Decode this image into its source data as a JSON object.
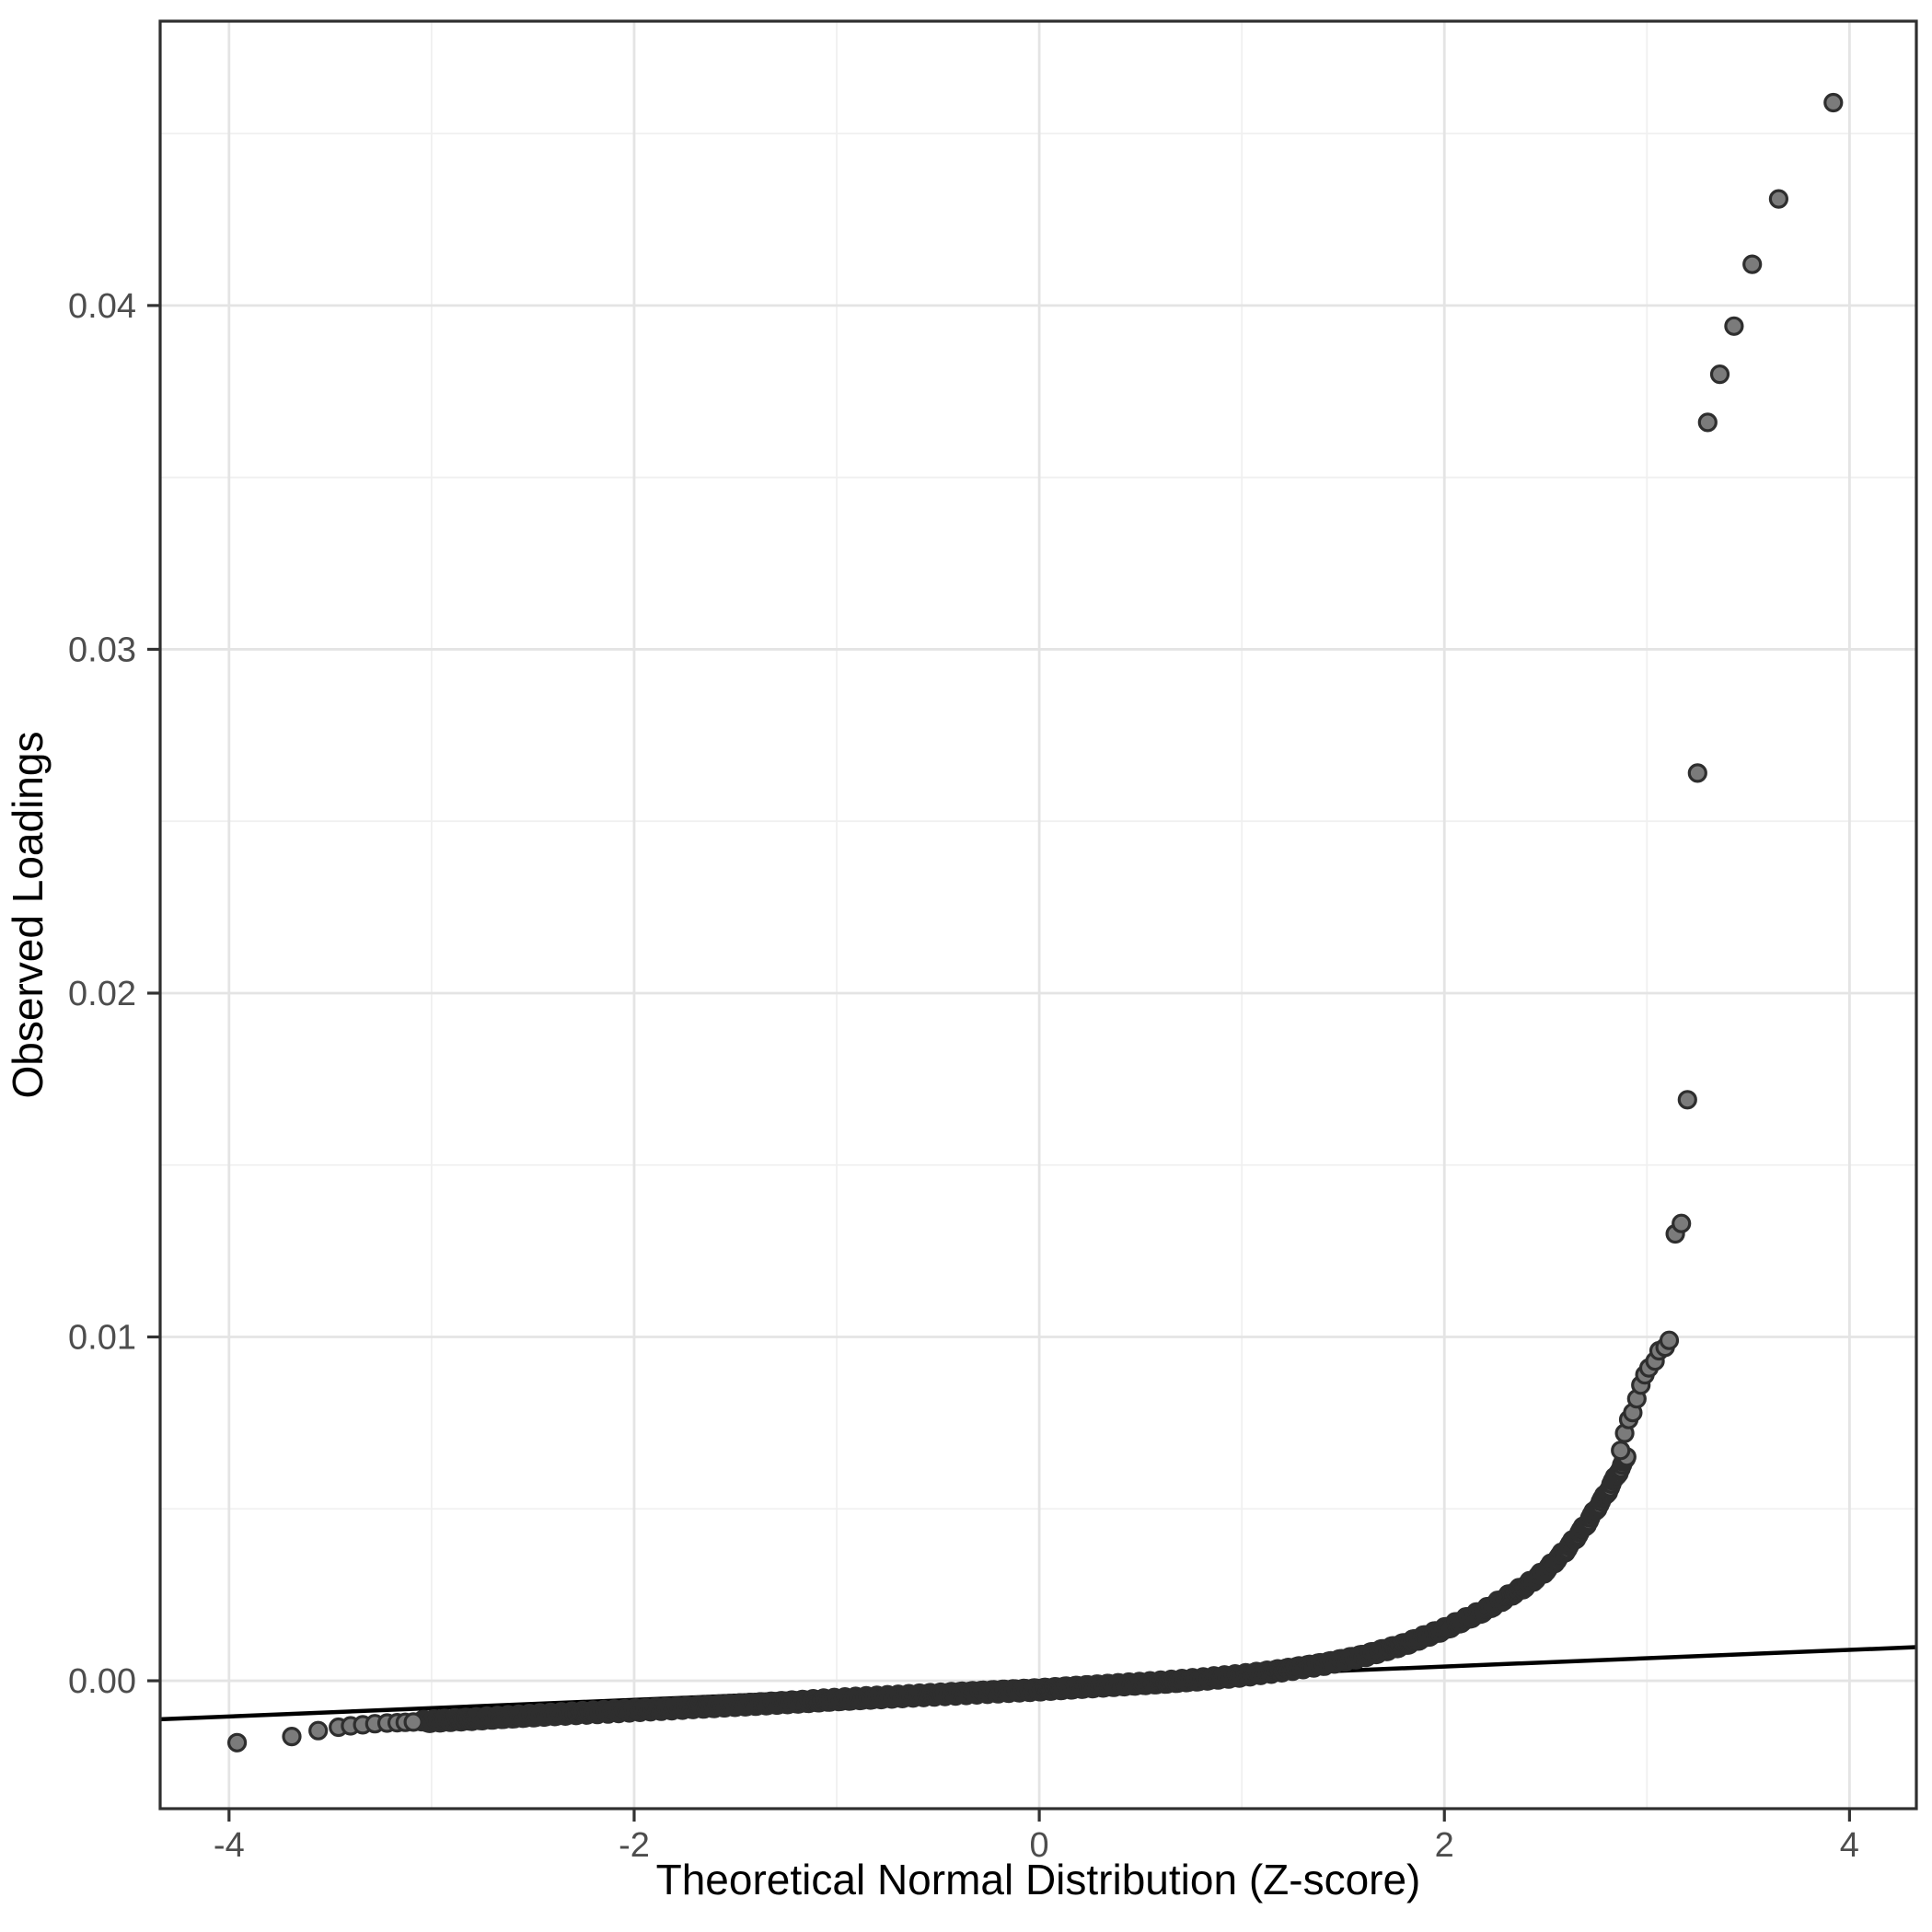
{
  "chart_data": {
    "type": "scatter",
    "title": "",
    "xlabel": "Theoretical Normal Distribution (Z-score)",
    "ylabel": "Observed Loadings",
    "xlim": [
      -4.34,
      4.33
    ],
    "ylim": [
      -0.00372,
      0.04827
    ],
    "grid": true,
    "legend": false,
    "x_ticks": [
      -4,
      -2,
      0,
      2,
      4
    ],
    "x_tick_labels": [
      "-4",
      "-2",
      "0",
      "2",
      "4"
    ],
    "x_minor_ticks": [
      -3,
      -1,
      1,
      3
    ],
    "y_ticks": [
      0.0,
      0.01,
      0.02,
      0.03,
      0.04
    ],
    "y_tick_labels": [
      "0.00",
      "0.01",
      "0.02",
      "0.03",
      "0.04"
    ],
    "y_minor_ticks": [
      0.005,
      0.015,
      0.025,
      0.035,
      0.045
    ],
    "reference_line": {
      "intercept": -7e-05,
      "slope": 0.000242
    },
    "left_tail_points": [
      [
        -3.96,
        -0.0018
      ],
      [
        -3.69,
        -0.00162
      ],
      [
        -3.56,
        -0.00145
      ],
      [
        -3.46,
        -0.00135
      ],
      [
        -3.4,
        -0.00131
      ],
      [
        -3.34,
        -0.00128
      ],
      [
        -3.28,
        -0.00125
      ],
      [
        -3.22,
        -0.00123
      ],
      [
        -3.17,
        -0.00122
      ],
      [
        -3.13,
        -0.00121
      ],
      [
        -3.09,
        -0.0012
      ]
    ],
    "band_anchors": [
      [
        -3.05,
        -0.00119
      ],
      [
        -2.8,
        -0.00112
      ],
      [
        -2.6,
        -0.00105
      ],
      [
        -2.4,
        -0.00098
      ],
      [
        -2.2,
        -0.00092
      ],
      [
        -2.0,
        -0.00086
      ],
      [
        -1.8,
        -0.0008
      ],
      [
        -1.6,
        -0.00074
      ],
      [
        -1.4,
        -0.00068
      ],
      [
        -1.2,
        -0.00062
      ],
      [
        -1.0,
        -0.00055
      ],
      [
        -0.8,
        -0.00049
      ],
      [
        -0.6,
        -0.00043
      ],
      [
        -0.4,
        -0.00037
      ],
      [
        -0.2,
        -0.00031
      ],
      [
        0.0,
        -0.00026
      ],
      [
        0.2,
        -0.00019
      ],
      [
        0.4,
        -0.00012
      ],
      [
        0.6,
        -5e-05
      ],
      [
        0.8,
        4e-05
      ],
      [
        1.0,
        0.00015
      ],
      [
        1.2,
        0.0003
      ],
      [
        1.4,
        0.00048
      ],
      [
        1.6,
        0.00072
      ],
      [
        1.8,
        0.00105
      ],
      [
        2.0,
        0.0015
      ],
      [
        2.2,
        0.00205
      ],
      [
        2.4,
        0.00275
      ],
      [
        2.5,
        0.0032
      ],
      [
        2.6,
        0.0038
      ],
      [
        2.7,
        0.00455
      ],
      [
        2.8,
        0.00545
      ],
      [
        2.9,
        0.0065
      ]
    ],
    "band_z_range": [
      -3.05,
      2.9
    ],
    "band_point_count": 1700,
    "band_jitter": 7e-05,
    "upper_points": [
      [
        2.87,
        0.0067
      ],
      [
        2.89,
        0.0072
      ],
      [
        2.91,
        0.0076
      ],
      [
        2.93,
        0.0078
      ],
      [
        2.95,
        0.0082
      ],
      [
        2.97,
        0.0086
      ],
      [
        2.99,
        0.0089
      ],
      [
        3.01,
        0.0091
      ],
      [
        3.04,
        0.0093
      ],
      [
        3.06,
        0.0096
      ],
      [
        3.09,
        0.0097
      ],
      [
        3.11,
        0.0099
      ],
      [
        3.14,
        0.013
      ],
      [
        3.17,
        0.0133
      ],
      [
        3.2,
        0.0169
      ],
      [
        3.25,
        0.0264
      ],
      [
        3.3,
        0.0366
      ],
      [
        3.36,
        0.038
      ],
      [
        3.43,
        0.0394
      ],
      [
        3.52,
        0.0412
      ],
      [
        3.65,
        0.0431
      ],
      [
        3.92,
        0.0459
      ]
    ],
    "style": {
      "background": "#ffffff",
      "panel_background": "#ffffff",
      "panel_border": "#2f2f2f",
      "grid_major": "#e4e4e4",
      "grid_minor": "#f0f0f0",
      "tick_mark": "#333333",
      "tick_text": "#4d4d4d",
      "title_text": "#000000",
      "point_fill": "#7b7b7b",
      "point_stroke": "#2e2e2e",
      "line_color": "#000000"
    }
  }
}
